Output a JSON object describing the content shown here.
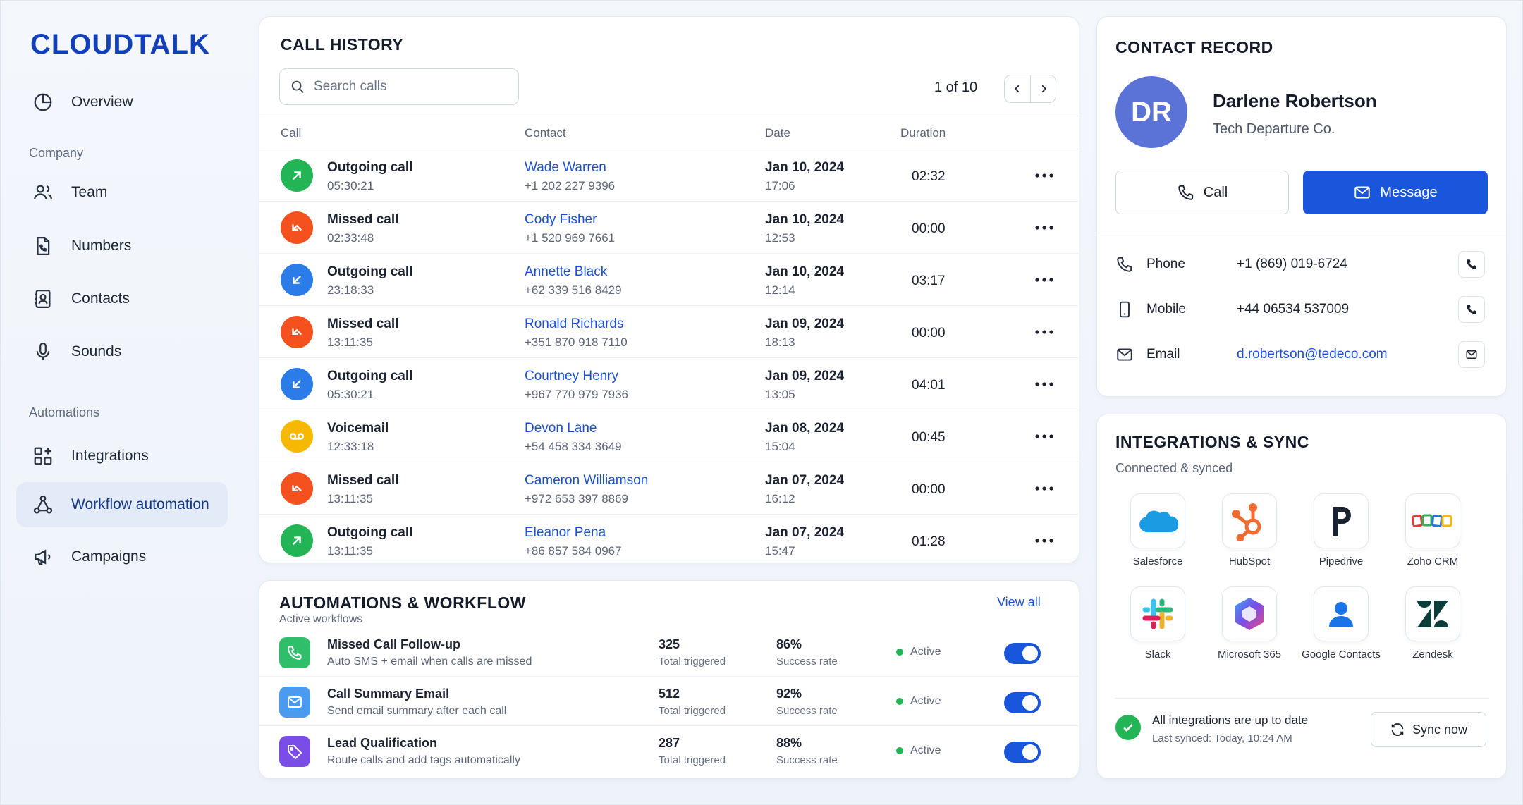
{
  "brand": {
    "logo": "CLOUDTALK"
  },
  "sidebar": {
    "items": [
      {
        "label": "Overview"
      },
      {
        "label": "Team"
      },
      {
        "label": "Numbers"
      },
      {
        "label": "Contacts"
      },
      {
        "label": "Sounds"
      },
      {
        "label": "Integrations"
      },
      {
        "label": "Workflow automation"
      },
      {
        "label": "Campaigns"
      }
    ],
    "sections": {
      "company": "Company",
      "automations": "Automations"
    }
  },
  "call_history": {
    "title": "CALL HISTORY",
    "search_placeholder": "Search calls",
    "pager": "1 of 10",
    "columns": {
      "call": "Call",
      "contact": "Contact",
      "date": "Date",
      "duration": "Duration"
    },
    "rows": [
      {
        "type": "Outgoing call",
        "time": "05:30:21",
        "name": "Wade Warren",
        "phone": "+1 202 227 9396",
        "date": "Jan 10, 2024",
        "hour": "17:06",
        "duration": "02:32",
        "icon": "arrow-up-right-icon",
        "color": "#22b455"
      },
      {
        "type": "Missed call",
        "time": "02:33:48",
        "name": "Cody Fisher",
        "phone": "+1 520 969 7661",
        "date": "Jan 10, 2024",
        "hour": "12:53",
        "duration": "00:00",
        "icon": "missed-call-icon",
        "color": "#f4511e"
      },
      {
        "type": "Outgoing call",
        "time": "23:18:33",
        "name": "Annette Black",
        "phone": "+62 339 516 8429",
        "date": "Jan 10, 2024",
        "hour": "12:14",
        "duration": "03:17",
        "icon": "arrow-down-left-icon",
        "color": "#2b7be9"
      },
      {
        "type": "Missed call",
        "time": "13:11:35",
        "name": "Ronald Richards",
        "phone": "+351 870 918 7110",
        "date": "Jan 09, 2024",
        "hour": "18:13",
        "duration": "00:00",
        "icon": "missed-call-icon",
        "color": "#f4511e"
      },
      {
        "type": "Outgoing call",
        "time": "05:30:21",
        "name": "Courtney Henry",
        "phone": "+967 770 979 7936",
        "date": "Jan 09, 2024",
        "hour": "13:05",
        "duration": "04:01",
        "icon": "arrow-down-left-icon",
        "color": "#2b7be9"
      },
      {
        "type": "Voicemail",
        "time": "12:33:18",
        "name": "Devon Lane",
        "phone": "+54 458 334 3649",
        "date": "Jan 08, 2024",
        "hour": "15:04",
        "duration": "00:45",
        "icon": "voicemail-icon",
        "color": "#f6b800"
      },
      {
        "type": "Missed call",
        "time": "13:11:35",
        "name": "Cameron Williamson",
        "phone": "+972 653 397 8869",
        "date": "Jan 07, 2024",
        "hour": "16:12",
        "duration": "00:00",
        "icon": "missed-call-icon",
        "color": "#f4511e"
      },
      {
        "type": "Outgoing call",
        "time": "13:11:35",
        "name": "Eleanor Pena",
        "phone": "+86 857 584 0967",
        "date": "Jan 07, 2024",
        "hour": "15:47",
        "duration": "01:28",
        "icon": "arrow-up-right-icon",
        "color": "#22b455"
      }
    ]
  },
  "automations": {
    "title": "AUTOMATIONS & WORKFLOW",
    "subtitle": "Active workflows",
    "view_all": "View all",
    "rows": [
      {
        "name": "Missed Call Follow-up",
        "desc": "Auto SMS + email when calls are missed",
        "triggered": "325",
        "triggered_label": "Total triggered",
        "rate": "86%",
        "rate_label": "Success rate",
        "status": "Active",
        "enabled": true,
        "icon": "phone-icon",
        "color": "#2fbf6a"
      },
      {
        "name": "Call Summary Email",
        "desc": "Send email summary after each call",
        "triggered": "512",
        "triggered_label": "Total triggered",
        "rate": "92%",
        "rate_label": "Success rate",
        "status": "Active",
        "enabled": true,
        "icon": "mail-icon",
        "color": "#4a9af0"
      },
      {
        "name": "Lead Qualification",
        "desc": "Route calls and add tags automatically",
        "triggered": "287",
        "triggered_label": "Total triggered",
        "rate": "88%",
        "rate_label": "Success rate",
        "status": "Active",
        "enabled": true,
        "icon": "tag-icon",
        "color": "#7a4ee6"
      }
    ]
  },
  "contact": {
    "title": "CONTACT RECORD",
    "initials": "DR",
    "name": "Darlene Robertson",
    "company": "Tech Departure Co.",
    "call_label": "Call",
    "message_label": "Message",
    "fields": [
      {
        "label": "Phone",
        "value": "+1 (869) 019-6724"
      },
      {
        "label": "Mobile",
        "value": "+44 06534 537009"
      },
      {
        "label": "Email",
        "value": "d.robertson@tedeco.com"
      }
    ]
  },
  "integrations": {
    "title": "INTEGRATIONS & SYNC",
    "subtitle": "Connected & synced",
    "apps": [
      {
        "name": "Salesforce"
      },
      {
        "name": "HubSpot"
      },
      {
        "name": "Pipedrive"
      },
      {
        "name": "Zoho CRM"
      },
      {
        "name": "Slack"
      },
      {
        "name": "Microsoft 365"
      },
      {
        "name": "Google Contacts"
      },
      {
        "name": "Zendesk"
      }
    ],
    "status": "All integrations are up to date",
    "last_synced": "Last synced: Today, 10:24 AM",
    "sync_label": "Sync now"
  },
  "colors": {
    "accent": "#1a56db",
    "link": "#1a4fd6",
    "brand": "#1240b8",
    "success": "#22b455"
  }
}
